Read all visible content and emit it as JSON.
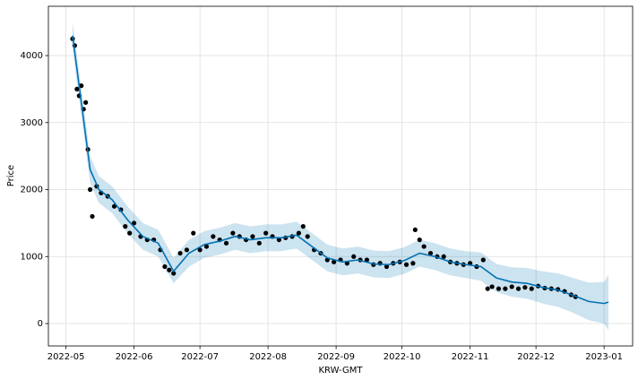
{
  "chart_data": {
    "type": "forecast",
    "xlabel": "KRW-GMT",
    "ylabel": "Price",
    "xlim": [
      "2022-04-23",
      "2023-01-14"
    ],
    "ylim": [
      -334,
      4736
    ],
    "xticks": [
      "2022-05",
      "2022-06",
      "2022-07",
      "2022-08",
      "2022-09",
      "2022-10",
      "2022-11",
      "2022-12",
      "2023-01"
    ],
    "yticks": [
      0,
      1000,
      2000,
      3000,
      4000
    ],
    "grid": true,
    "points": {
      "color": "#000000",
      "x": [
        "2022-05-04",
        "2022-05-05",
        "2022-05-06",
        "2022-05-07",
        "2022-05-08",
        "2022-05-09",
        "2022-05-10",
        "2022-05-11",
        "2022-05-12",
        "2022-05-13",
        "2022-05-15",
        "2022-05-17",
        "2022-05-20",
        "2022-05-23",
        "2022-05-26",
        "2022-05-28",
        "2022-05-30",
        "2022-06-01",
        "2022-06-04",
        "2022-06-07",
        "2022-06-10",
        "2022-06-13",
        "2022-06-15",
        "2022-06-17",
        "2022-06-19",
        "2022-06-22",
        "2022-06-25",
        "2022-06-28",
        "2022-07-01",
        "2022-07-04",
        "2022-07-07",
        "2022-07-10",
        "2022-07-13",
        "2022-07-16",
        "2022-07-19",
        "2022-07-22",
        "2022-07-25",
        "2022-07-28",
        "2022-07-31",
        "2022-08-03",
        "2022-08-06",
        "2022-08-09",
        "2022-08-12",
        "2022-08-15",
        "2022-08-17",
        "2022-08-19",
        "2022-08-22",
        "2022-08-25",
        "2022-08-28",
        "2022-08-31",
        "2022-09-03",
        "2022-09-06",
        "2022-09-09",
        "2022-09-12",
        "2022-09-15",
        "2022-09-18",
        "2022-09-21",
        "2022-09-24",
        "2022-09-27",
        "2022-09-30",
        "2022-10-03",
        "2022-10-06",
        "2022-10-07",
        "2022-10-09",
        "2022-10-11",
        "2022-10-14",
        "2022-10-17",
        "2022-10-20",
        "2022-10-23",
        "2022-10-26",
        "2022-10-29",
        "2022-11-01",
        "2022-11-04",
        "2022-11-07",
        "2022-11-09",
        "2022-11-11",
        "2022-11-14",
        "2022-11-17",
        "2022-11-20",
        "2022-11-23",
        "2022-11-26",
        "2022-11-29",
        "2022-12-02",
        "2022-12-05",
        "2022-12-08",
        "2022-12-11",
        "2022-12-14",
        "2022-12-17",
        "2022-12-19"
      ],
      "values": [
        4250,
        4150,
        3500,
        3400,
        3550,
        3200,
        3300,
        2600,
        2000,
        1600,
        2050,
        1950,
        1900,
        1750,
        1700,
        1450,
        1350,
        1500,
        1300,
        1250,
        1250,
        1100,
        850,
        800,
        750,
        1050,
        1100,
        1350,
        1100,
        1150,
        1300,
        1250,
        1200,
        1350,
        1300,
        1250,
        1300,
        1200,
        1350,
        1300,
        1250,
        1280,
        1300,
        1350,
        1450,
        1300,
        1100,
        1050,
        950,
        920,
        950,
        900,
        1000,
        950,
        950,
        880,
        900,
        850,
        900,
        920,
        880,
        900,
        1400,
        1250,
        1150,
        1050,
        1000,
        1000,
        920,
        900,
        880,
        900,
        850,
        950,
        520,
        550,
        520,
        520,
        550,
        520,
        540,
        520,
        560,
        530,
        520,
        510,
        480,
        430,
        400
      ]
    },
    "forecast": {
      "color": "#0072b2",
      "x": [
        "2022-05-04",
        "2022-05-08",
        "2022-05-12",
        "2022-05-16",
        "2022-05-22",
        "2022-05-29",
        "2022-06-05",
        "2022-06-12",
        "2022-06-19",
        "2022-06-26",
        "2022-07-03",
        "2022-07-10",
        "2022-07-17",
        "2022-07-24",
        "2022-07-31",
        "2022-08-07",
        "2022-08-14",
        "2022-08-21",
        "2022-08-28",
        "2022-09-04",
        "2022-09-11",
        "2022-09-18",
        "2022-09-25",
        "2022-10-02",
        "2022-10-09",
        "2022-10-16",
        "2022-10-23",
        "2022-10-30",
        "2022-11-06",
        "2022-11-13",
        "2022-11-20",
        "2022-11-27",
        "2022-12-04",
        "2022-12-11",
        "2022-12-18",
        "2022-12-25",
        "2023-01-01",
        "2023-01-03"
      ],
      "values": [
        4300,
        3300,
        2300,
        2000,
        1850,
        1550,
        1300,
        1200,
        780,
        1050,
        1180,
        1230,
        1300,
        1250,
        1280,
        1280,
        1320,
        1150,
        980,
        920,
        950,
        890,
        880,
        940,
        1050,
        1000,
        920,
        880,
        850,
        680,
        620,
        600,
        540,
        500,
        420,
        330,
        300,
        320
      ],
      "lower": [
        4100,
        3100,
        2100,
        1800,
        1650,
        1350,
        1100,
        1000,
        600,
        850,
        980,
        1030,
        1100,
        1050,
        1080,
        1080,
        1120,
        950,
        780,
        720,
        750,
        690,
        680,
        740,
        850,
        800,
        720,
        680,
        640,
        470,
        400,
        370,
        300,
        250,
        160,
        50,
        0,
        -100
      ],
      "upper": [
        4500,
        3500,
        2500,
        2200,
        2050,
        1750,
        1500,
        1400,
        980,
        1250,
        1380,
        1430,
        1500,
        1450,
        1480,
        1480,
        1520,
        1350,
        1180,
        1120,
        1150,
        1090,
        1080,
        1140,
        1250,
        1200,
        1120,
        1080,
        1060,
        890,
        840,
        830,
        780,
        750,
        680,
        610,
        620,
        730
      ]
    }
  }
}
